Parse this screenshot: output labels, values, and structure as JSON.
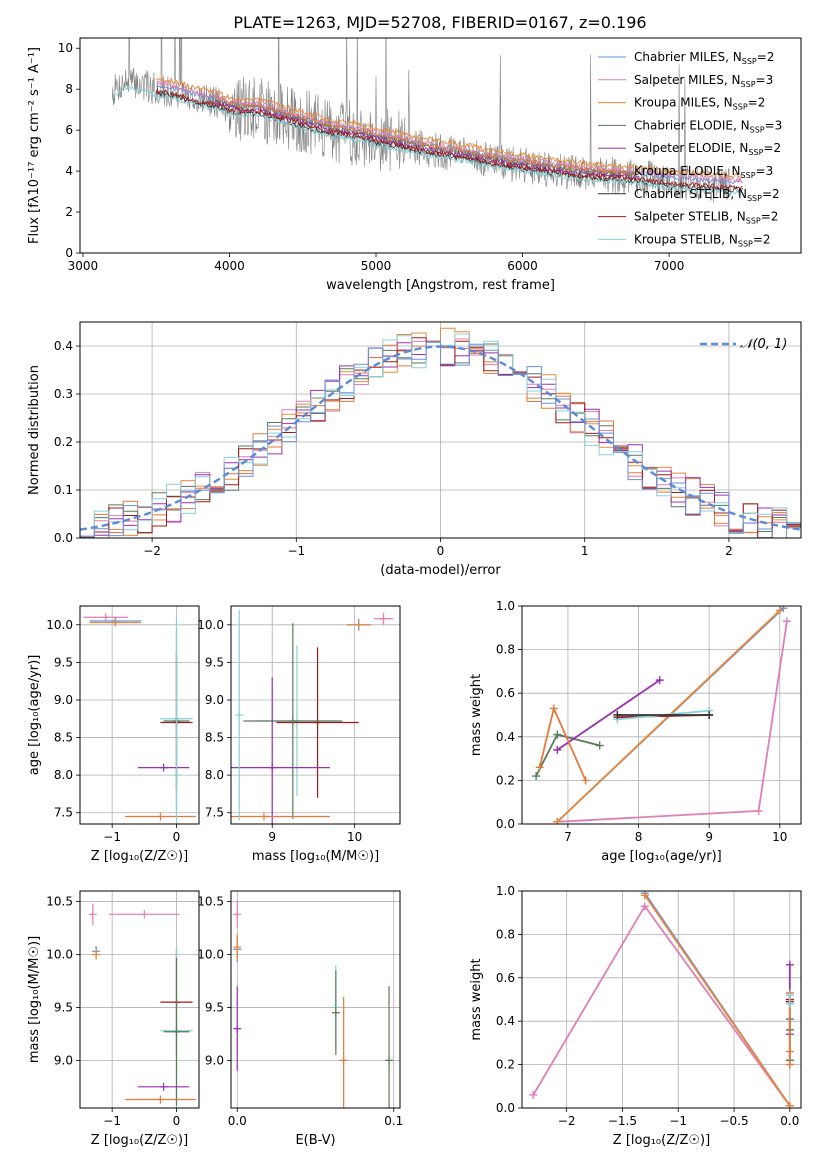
{
  "figure_title": "PLATE=1263, MJD=52708, FIBERID=0167, z=0.196",
  "colors": {
    "chabrier_miles": "#6a8fd9",
    "salpeter_miles": "#e07fb5",
    "kroupa_miles": "#e8883a",
    "chabrier_elodie": "#5a7a5a",
    "salpeter_elodie": "#9b30b0",
    "kroupa_elodie": "#e27a3c",
    "chabrier_stelib": "#333333",
    "salpeter_stelib": "#a01c1c",
    "kroupa_stelib": "#88d0d8",
    "data": "#7f7f7f",
    "normal": "#5b8ad6",
    "grid": "#b0b0b0"
  },
  "chart_data": [
    {
      "id": "spectrum",
      "type": "line",
      "title": "PLATE=1263, MJD=52708, FIBERID=0167, z=0.196",
      "xlabel": "wavelength [Angstrom, rest frame]",
      "ylabel": "Flux [fλ10⁻¹⁷ erg cm⁻² s⁻¹ A⁻¹]",
      "xlim": [
        2980,
        7900
      ],
      "ylim": [
        0,
        10.5
      ],
      "xticks": [
        3000,
        4000,
        5000,
        6000,
        7000
      ],
      "yticks": [
        0,
        2,
        4,
        6,
        8,
        10
      ],
      "grid": false,
      "legend_position": "top-right",
      "legend": [
        {
          "label": "Chabrier MILES, N",
          "sub": "SSP",
          "suffix": "=2",
          "color_key": "chabrier_miles"
        },
        {
          "label": "Salpeter MILES, N",
          "sub": "SSP",
          "suffix": "=3",
          "color_key": "salpeter_miles"
        },
        {
          "label": "Kroupa MILES, N",
          "sub": "SSP",
          "suffix": "=2",
          "color_key": "kroupa_miles"
        },
        {
          "label": "Chabrier ELODIE, N",
          "sub": "SSP",
          "suffix": "=3",
          "color_key": "chabrier_elodie"
        },
        {
          "label": "Salpeter ELODIE, N",
          "sub": "SSP",
          "suffix": "=2",
          "color_key": "salpeter_elodie"
        },
        {
          "label": "Kroupa ELODIE, N",
          "sub": "SSP",
          "suffix": "=3",
          "color_key": "kroupa_elodie"
        },
        {
          "label": "Chabrier STELIB, N",
          "sub": "SSP",
          "suffix": "=2",
          "color_key": "chabrier_stelib"
        },
        {
          "label": "Salpeter STELIB, N",
          "sub": "SSP",
          "suffix": "=2",
          "color_key": "salpeter_stelib"
        },
        {
          "label": "Kroupa STELIB, N",
          "sub": "SSP",
          "suffix": "=2",
          "color_key": "kroupa_stelib"
        }
      ],
      "continuum": [
        [
          3200,
          7.9
        ],
        [
          3300,
          8.4
        ],
        [
          3400,
          8.2
        ],
        [
          3500,
          8.0
        ],
        [
          3600,
          7.9
        ],
        [
          3700,
          7.7
        ],
        [
          3800,
          7.5
        ],
        [
          3900,
          7.4
        ],
        [
          4000,
          7.1
        ],
        [
          4100,
          7.0
        ],
        [
          4200,
          7.0
        ],
        [
          4300,
          6.8
        ],
        [
          4400,
          6.6
        ],
        [
          4500,
          6.4
        ],
        [
          4600,
          6.2
        ],
        [
          4700,
          6.0
        ],
        [
          4800,
          5.9
        ],
        [
          4900,
          5.8
        ],
        [
          5000,
          5.6
        ],
        [
          5200,
          5.3
        ],
        [
          5400,
          5.0
        ],
        [
          5600,
          4.8
        ],
        [
          5800,
          4.5
        ],
        [
          6000,
          4.3
        ],
        [
          6200,
          4.1
        ],
        [
          6400,
          3.9
        ],
        [
          6600,
          3.8
        ],
        [
          6800,
          3.7
        ],
        [
          7000,
          3.5
        ],
        [
          7200,
          3.4
        ],
        [
          7400,
          3.3
        ]
      ],
      "model_offsets": [
        {
          "color_key": "chabrier_miles",
          "start": 3500,
          "end": 7500,
          "dy": 0.2
        },
        {
          "color_key": "salpeter_miles",
          "start": 3500,
          "end": 7500,
          "dy": 0.3
        },
        {
          "color_key": "kroupa_miles",
          "start": 3500,
          "end": 7500,
          "dy": 0.5
        },
        {
          "color_key": "chabrier_elodie",
          "start": 3900,
          "end": 6800,
          "dy": 0.1
        },
        {
          "color_key": "salpeter_elodie",
          "start": 3900,
          "end": 6800,
          "dy": 0.0
        },
        {
          "color_key": "kroupa_elodie",
          "start": 3900,
          "end": 6800,
          "dy": 0.2
        },
        {
          "color_key": "chabrier_stelib",
          "start": 3500,
          "end": 7500,
          "dy": -0.2
        },
        {
          "color_key": "salpeter_stelib",
          "start": 3500,
          "end": 7500,
          "dy": -0.1
        },
        {
          "color_key": "kroupa_stelib",
          "start": 3200,
          "end": 7500,
          "dy": -0.3
        }
      ]
    },
    {
      "id": "residuals",
      "type": "line",
      "xlabel": "(data-model)/error",
      "ylabel": "Normed distribution",
      "xlim": [
        -2.5,
        2.5
      ],
      "ylim": [
        0,
        0.45
      ],
      "xticks": [
        -2,
        -1,
        0,
        1,
        2
      ],
      "yticks": [
        0.0,
        0.1,
        0.2,
        0.3,
        0.4
      ],
      "grid": true,
      "legend_position": "top-right",
      "normal_label": "𝒩(0, 1)",
      "bin_width": 0.1,
      "step_series": [
        {
          "color_key": "salpeter_miles",
          "jitter": 1
        },
        {
          "color_key": "kroupa_miles",
          "jitter": 2
        },
        {
          "color_key": "chabrier_elodie",
          "jitter": 3
        },
        {
          "color_key": "salpeter_elodie",
          "jitter": 4
        },
        {
          "color_key": "kroupa_elodie",
          "jitter": 5
        },
        {
          "color_key": "salpeter_stelib",
          "jitter": 6
        },
        {
          "color_key": "kroupa_stelib",
          "jitter": 7
        },
        {
          "color_key": "chabrier_miles",
          "jitter": 8
        }
      ]
    },
    {
      "id": "age_vs_Z",
      "type": "scatter",
      "xlabel": "Z [log₁₀(Z/Z☉)]",
      "ylabel": "age  [log₁₀(age/yr)]",
      "xlim": [
        -1.5,
        0.35
      ],
      "ylim": [
        7.35,
        10.25
      ],
      "xticks": [
        -1,
        0
      ],
      "yticks": [
        7.5,
        8.0,
        8.5,
        9.0,
        9.5,
        10.0
      ],
      "grid": true,
      "errorbars": [
        {
          "color_key": "salpeter_miles",
          "x": -1.1,
          "y": 10.1,
          "xerr": 0.35,
          "yerr": 0
        },
        {
          "color_key": "chabrier_miles",
          "x": -0.95,
          "y": 10.05,
          "xerr": 0.4,
          "yerr": 0.05
        },
        {
          "color_key": "kroupa_miles",
          "x": -0.95,
          "y": 10.03,
          "xerr": 0.4,
          "yerr": 0.05
        },
        {
          "color_key": "kroupa_stelib",
          "x": 0.0,
          "y": 8.75,
          "xerr": 0.25,
          "yerr": 0.9
        },
        {
          "color_key": "salpeter_stelib",
          "x": 0.0,
          "y": 8.7,
          "xerr": 0.25,
          "yerr": 0.9
        },
        {
          "color_key": "chabrier_elodie",
          "x": 0.0,
          "y": 8.72,
          "xerr": 0.2,
          "yerr": 1.2
        },
        {
          "color_key": "salpeter_elodie",
          "x": -0.2,
          "y": 8.1,
          "xerr": 0.4,
          "yerr": 0
        },
        {
          "color_key": "kroupa_elodie",
          "x": -0.25,
          "y": 7.45,
          "xerr": 0.55,
          "yerr": 0
        },
        {
          "color_key": "kroupa_stelib",
          "x": 0.0,
          "y": 8.0,
          "xerr": 0,
          "yerr": 2.1
        }
      ]
    },
    {
      "id": "age_vs_mass",
      "type": "scatter",
      "xlabel": "mass [log₁₀(M/M☉)]",
      "ylabel": "",
      "xlim": [
        8.5,
        10.55
      ],
      "ylim": [
        7.35,
        10.25
      ],
      "xticks": [
        9,
        10
      ],
      "yticks": [
        7.5,
        8.0,
        8.5,
        9.0,
        9.5,
        10.0
      ],
      "grid": true,
      "errorbars": [
        {
          "color_key": "chabrier_miles",
          "x": 10.05,
          "y": 10.0,
          "xerr": 0.15,
          "yerr": 0.08
        },
        {
          "color_key": "salpeter_miles",
          "x": 10.35,
          "y": 10.08,
          "xerr": 0.12,
          "yerr": 0.08
        },
        {
          "color_key": "kroupa_miles",
          "x": 10.05,
          "y": 10.0,
          "xerr": 0.15,
          "yerr": 0
        },
        {
          "color_key": "kroupa_stelib",
          "x": 9.3,
          "y": 8.72,
          "xerr": 0.5,
          "yerr": 1.0
        },
        {
          "color_key": "salpeter_stelib",
          "x": 9.55,
          "y": 8.7,
          "xerr": 0.5,
          "yerr": 1.0
        },
        {
          "color_key": "chabrier_elodie",
          "x": 9.25,
          "y": 8.72,
          "xerr": 0.6,
          "yerr": 1.3
        },
        {
          "color_key": "salpeter_elodie",
          "x": 9.0,
          "y": 8.1,
          "xerr": 0.7,
          "yerr": 1.2
        },
        {
          "color_key": "kroupa_elodie",
          "x": 8.9,
          "y": 7.45,
          "xerr": 0.8,
          "yerr": 0
        },
        {
          "color_key": "kroupa_stelib",
          "x": 8.6,
          "y": 8.8,
          "xerr": 0,
          "yerr": 1.4
        }
      ]
    },
    {
      "id": "weight_vs_age",
      "type": "line",
      "xlabel": "age  [log₁₀(age/yr)]",
      "ylabel": "mass weight",
      "xlim": [
        6.35,
        10.3
      ],
      "ylim": [
        0,
        1.0
      ],
      "xticks": [
        7,
        8,
        9,
        10
      ],
      "yticks": [
        0.0,
        0.2,
        0.4,
        0.6,
        0.8,
        1.0
      ],
      "grid": true,
      "series": [
        {
          "color_key": "salpeter_miles",
          "points": [
            [
              6.85,
              0.01
            ],
            [
              9.7,
              0.06
            ],
            [
              10.1,
              0.93
            ]
          ]
        },
        {
          "color_key": "chabrier_miles",
          "points": [
            [
              6.85,
              0.01
            ],
            [
              10.05,
              0.99
            ]
          ]
        },
        {
          "color_key": "kroupa_miles",
          "points": [
            [
              6.85,
              0.01
            ],
            [
              10.0,
              0.98
            ]
          ]
        },
        {
          "color_key": "chabrier_elodie",
          "points": [
            [
              6.55,
              0.22
            ],
            [
              6.85,
              0.41
            ],
            [
              7.45,
              0.36
            ]
          ]
        },
        {
          "color_key": "salpeter_elodie",
          "points": [
            [
              6.85,
              0.34
            ],
            [
              8.3,
              0.66
            ]
          ]
        },
        {
          "color_key": "kroupa_elodie",
          "points": [
            [
              6.6,
              0.26
            ],
            [
              6.8,
              0.53
            ],
            [
              7.25,
              0.2
            ]
          ]
        },
        {
          "color_key": "salpeter_stelib",
          "points": [
            [
              7.7,
              0.49
            ],
            [
              9.0,
              0.5
            ]
          ]
        },
        {
          "color_key": "kroupa_stelib",
          "points": [
            [
              7.7,
              0.48
            ],
            [
              9.0,
              0.52
            ]
          ]
        },
        {
          "color_key": "chabrier_stelib",
          "points": [
            [
              7.7,
              0.5
            ],
            [
              9.0,
              0.5
            ]
          ]
        }
      ]
    },
    {
      "id": "mass_vs_Z",
      "type": "scatter",
      "xlabel": "Z [log₁₀(Z/Z☉)]",
      "ylabel": "mass [log₁₀(M/M☉)]",
      "xlim": [
        -1.5,
        0.35
      ],
      "ylim": [
        8.55,
        10.6
      ],
      "xticks": [
        -1,
        0
      ],
      "yticks": [
        9.0,
        9.5,
        10.0,
        10.5
      ],
      "grid": true,
      "errorbars": [
        {
          "color_key": "salpeter_miles",
          "x": -1.3,
          "y": 10.38,
          "xerr": 0.0,
          "yerr": 0.1
        },
        {
          "color_key": "chabrier_miles",
          "x": -1.25,
          "y": 10.03,
          "xerr": 0.0,
          "yerr": 0.05
        },
        {
          "color_key": "kroupa_miles",
          "x": -1.25,
          "y": 10.0,
          "xerr": 0.0,
          "yerr": 0.05
        },
        {
          "color_key": "salpeter_stelib",
          "x": 0.0,
          "y": 9.55,
          "xerr": 0.25,
          "yerr": 0.5
        },
        {
          "color_key": "kroupa_stelib",
          "x": 0.0,
          "y": 9.28,
          "xerr": 0.25,
          "yerr": 0.8
        },
        {
          "color_key": "chabrier_elodie",
          "x": 0.0,
          "y": 9.27,
          "xerr": 0.2,
          "yerr": 0.7
        },
        {
          "color_key": "salpeter_elodie",
          "x": -0.2,
          "y": 8.75,
          "xerr": 0.4,
          "yerr": 0
        },
        {
          "color_key": "kroupa_elodie",
          "x": -0.25,
          "y": 8.63,
          "xerr": 0.55,
          "yerr": 0
        },
        {
          "color_key": "salpeter_miles_line",
          "x": -0.5,
          "y": 10.38,
          "xerr": 0.55,
          "yerr": 0
        }
      ]
    },
    {
      "id": "mass_vs_ebv",
      "type": "scatter",
      "xlabel": "E(B-V)",
      "ylabel": "",
      "xlim": [
        -0.004,
        0.104
      ],
      "ylim": [
        8.55,
        10.6
      ],
      "xticks": [
        0.0,
        0.1
      ],
      "yticks": [
        9.0,
        9.5,
        10.0,
        10.5
      ],
      "grid": true,
      "errorbars": [
        {
          "color_key": "salpeter_miles",
          "x": 0.0,
          "y": 10.38,
          "xerr": 0,
          "yerr": 0.12
        },
        {
          "color_key": "chabrier_miles",
          "x": 0.0,
          "y": 10.05,
          "xerr": 0,
          "yerr": 0.12
        },
        {
          "color_key": "kroupa_miles",
          "x": 0.0,
          "y": 10.07,
          "xerr": 0,
          "yerr": 0.12
        },
        {
          "color_key": "salpeter_elodie",
          "x": 0.0,
          "y": 9.3,
          "xerr": 0,
          "yerr": 0.4
        },
        {
          "color_key": "kroupa_stelib",
          "x": 0.063,
          "y": 9.5,
          "xerr": 0,
          "yerr": 0.4
        },
        {
          "color_key": "chabrier_elodie",
          "x": 0.063,
          "y": 9.45,
          "xerr": 0,
          "yerr": 0.4
        },
        {
          "color_key": "kroupa_elodie",
          "x": 0.068,
          "y": 9.0,
          "xerr": 0,
          "yerr": 0.6
        },
        {
          "color_key": "chabrier_elodie",
          "x": 0.097,
          "y": 9.0,
          "xerr": 0,
          "yerr": 0.7
        }
      ]
    },
    {
      "id": "weight_vs_Z",
      "type": "line",
      "xlabel": "Z [log₁₀(Z/Z☉)]",
      "ylabel": "mass weight",
      "xlim": [
        -2.4,
        0.1
      ],
      "ylim": [
        0,
        1.0
      ],
      "xticks": [
        -2.0,
        -1.5,
        -1.0,
        -0.5,
        0.0
      ],
      "yticks": [
        0.0,
        0.2,
        0.4,
        0.6,
        0.8,
        1.0
      ],
      "grid": true,
      "series": [
        {
          "color_key": "salpeter_miles",
          "points": [
            [
              -2.3,
              0.06
            ],
            [
              -1.3,
              0.93
            ],
            [
              0.0,
              0.01
            ]
          ]
        },
        {
          "color_key": "chabrier_miles",
          "points": [
            [
              -1.3,
              0.99
            ],
            [
              0.0,
              0.01
            ]
          ]
        },
        {
          "color_key": "kroupa_miles",
          "points": [
            [
              -1.3,
              0.98
            ],
            [
              0.0,
              0.01
            ]
          ]
        },
        {
          "color_key": "salpeter_elodie",
          "points": [
            [
              0.0,
              0.34
            ],
            [
              0.0,
              0.66
            ]
          ]
        },
        {
          "color_key": "chabrier_elodie",
          "points": [
            [
              0.0,
              0.22
            ],
            [
              0.0,
              0.41
            ],
            [
              0.0,
              0.36
            ]
          ]
        },
        {
          "color_key": "kroupa_elodie",
          "points": [
            [
              0.0,
              0.2
            ],
            [
              0.0,
              0.53
            ],
            [
              0.0,
              0.26
            ]
          ]
        },
        {
          "color_key": "salpeter_stelib",
          "points": [
            [
              0.0,
              0.49
            ],
            [
              0.0,
              0.5
            ]
          ]
        },
        {
          "color_key": "kroupa_stelib",
          "points": [
            [
              0.0,
              0.48
            ],
            [
              0.0,
              0.52
            ]
          ]
        }
      ]
    }
  ]
}
